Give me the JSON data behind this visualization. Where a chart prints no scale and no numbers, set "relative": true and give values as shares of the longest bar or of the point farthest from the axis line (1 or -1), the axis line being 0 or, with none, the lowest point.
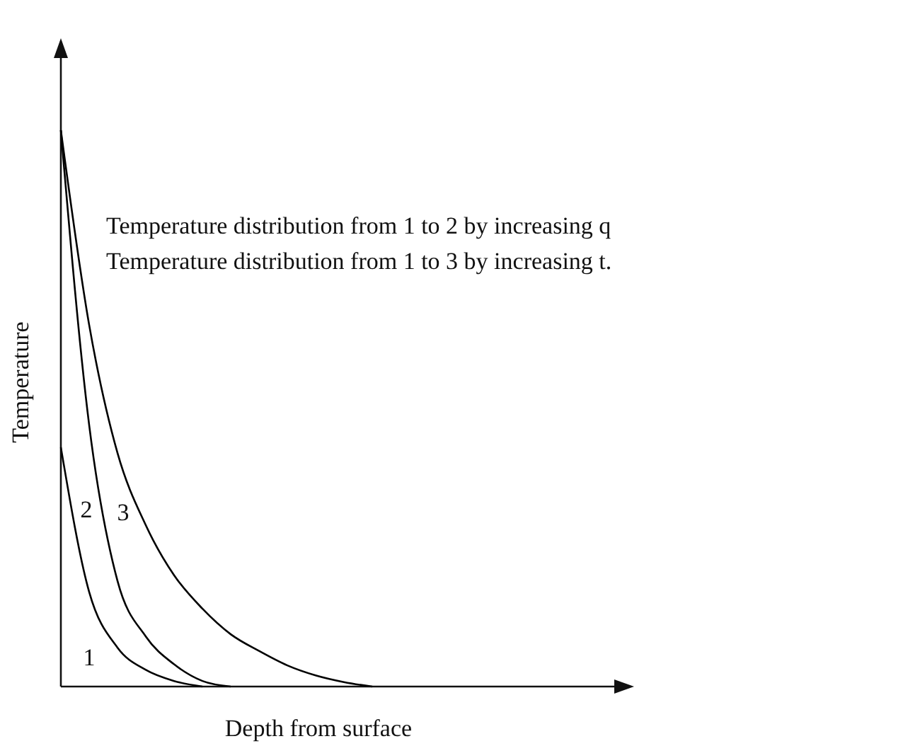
{
  "chart_data": {
    "type": "line",
    "relative": true,
    "xlabel": "Depth from surface",
    "ylabel": "Temperature",
    "marker": "none",
    "line_style": "solid",
    "categories": [
      null,
      null,
      null,
      null,
      null,
      null,
      null,
      null,
      null,
      null,
      null,
      null,
      null,
      null,
      null,
      null,
      null,
      null,
      null,
      null,
      null
    ],
    "series": [
      {
        "name": "1",
        "color": "#000000",
        "values": [
          0.43,
          0.17,
          0.07,
          0.03,
          0.01,
          0,
          null,
          null,
          null,
          null,
          null,
          null,
          null,
          null,
          null,
          null,
          null,
          null,
          null,
          null,
          null
        ]
      },
      {
        "name": "2",
        "color": "#000000",
        "values": [
          1,
          0.47,
          0.19,
          0.09,
          0.04,
          0.01,
          0,
          null,
          null,
          null,
          null,
          null,
          null,
          null,
          null,
          null,
          null,
          null,
          null,
          null,
          null
        ]
      },
      {
        "name": "3",
        "color": "#000000",
        "values": [
          1,
          0.65,
          0.42,
          0.29,
          0.2,
          0.14,
          0.094,
          0.064,
          0.038,
          0.02,
          0.008,
          0,
          null,
          null,
          null,
          null,
          null,
          null,
          null,
          null,
          null
        ]
      }
    ],
    "annotations": [
      "Temperature distribution from 1 to 2 by increasing q",
      "Temperature distribution from 1 to 3 by increasing t."
    ]
  }
}
